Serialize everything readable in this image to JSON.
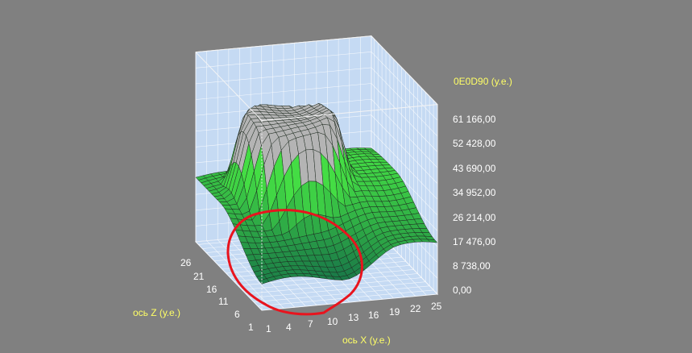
{
  "chart_data": {
    "type": "surface3d",
    "title": "0E0D90 (у.е.)",
    "xlabel": "ось X (у.е.)",
    "zlabel": "ось Z (у.е.)",
    "x_ticks": [
      "1",
      "4",
      "7",
      "10",
      "13",
      "16",
      "19",
      "22",
      "25"
    ],
    "z_ticks": [
      "26",
      "21",
      "16",
      "11",
      "6",
      "1"
    ],
    "y_ticks": [
      "61 166,00",
      "52 428,00",
      "43 690,00",
      "34 952,00",
      "26 214,00",
      "17 476,00",
      "8 738,00",
      "0,00"
    ],
    "xlim": [
      1,
      25
    ],
    "zlim": [
      1,
      26
    ],
    "ylim": [
      0,
      61166
    ],
    "grid": true,
    "colors": {
      "high": "#b4b4b4",
      "mid": "#44dd44",
      "low": "#1a7a48",
      "annotation": "#e8141e",
      "axis_title": "#ffff66",
      "wall": "#c5daf3"
    }
  }
}
